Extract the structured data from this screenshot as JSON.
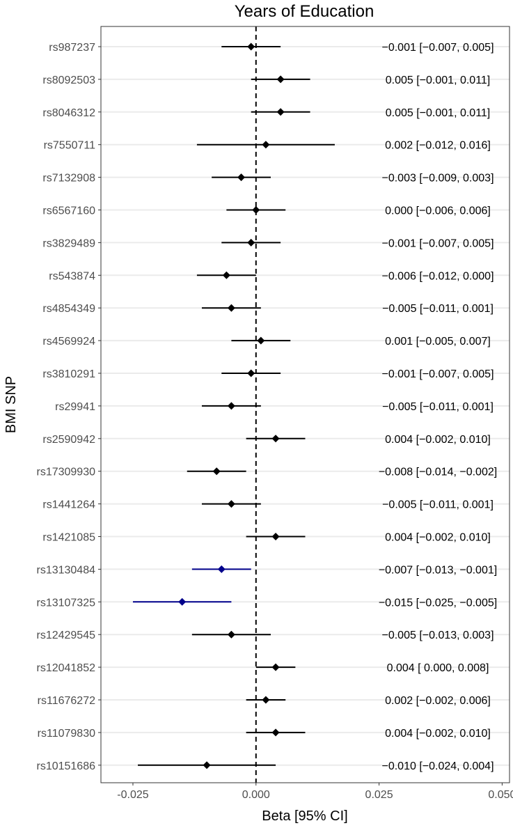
{
  "chart_data": {
    "type": "forest",
    "title": "Years of Education",
    "xlabel": "Beta [95% CI]",
    "ylabel": "BMI SNP",
    "xlim": [
      -0.0315,
      0.0515
    ],
    "xticks": [
      -0.025,
      0.0,
      0.025,
      0.05
    ],
    "xtick_labels": [
      "-0.025",
      "0.000",
      "0.025",
      "0.050"
    ],
    "reference_line": 0,
    "grid": "horizontal",
    "colors": {
      "default": "#000000",
      "highlight": "#00008b",
      "gridline": "#ebebeb",
      "tick_text": "#4d4d4d"
    },
    "rows": [
      {
        "snp": "rs987237",
        "beta": -0.001,
        "lo": -0.007,
        "hi": 0.005,
        "label": "−0.001 [−0.007,  0.005]",
        "highlight": false
      },
      {
        "snp": "rs8092503",
        "beta": 0.005,
        "lo": -0.001,
        "hi": 0.011,
        "label": "0.005 [−0.001,  0.011]",
        "highlight": false
      },
      {
        "snp": "rs8046312",
        "beta": 0.005,
        "lo": -0.001,
        "hi": 0.011,
        "label": "0.005 [−0.001,  0.011]",
        "highlight": false
      },
      {
        "snp": "rs7550711",
        "beta": 0.002,
        "lo": -0.012,
        "hi": 0.016,
        "label": "0.002 [−0.012,  0.016]",
        "highlight": false
      },
      {
        "snp": "rs7132908",
        "beta": -0.003,
        "lo": -0.009,
        "hi": 0.003,
        "label": "−0.003 [−0.009,  0.003]",
        "highlight": false
      },
      {
        "snp": "rs6567160",
        "beta": 0.0,
        "lo": -0.006,
        "hi": 0.006,
        "label": "0.000 [−0.006,  0.006]",
        "highlight": false
      },
      {
        "snp": "rs3829489",
        "beta": -0.001,
        "lo": -0.007,
        "hi": 0.005,
        "label": "−0.001 [−0.007,  0.005]",
        "highlight": false
      },
      {
        "snp": "rs543874",
        "beta": -0.006,
        "lo": -0.012,
        "hi": 0.0,
        "label": "−0.006 [−0.012,  0.000]",
        "highlight": false
      },
      {
        "snp": "rs4854349",
        "beta": -0.005,
        "lo": -0.011,
        "hi": 0.001,
        "label": "−0.005 [−0.011,  0.001]",
        "highlight": false
      },
      {
        "snp": "rs4569924",
        "beta": 0.001,
        "lo": -0.005,
        "hi": 0.007,
        "label": "0.001 [−0.005,  0.007]",
        "highlight": false
      },
      {
        "snp": "rs3810291",
        "beta": -0.001,
        "lo": -0.007,
        "hi": 0.005,
        "label": "−0.001 [−0.007,  0.005]",
        "highlight": false
      },
      {
        "snp": "rs29941",
        "beta": -0.005,
        "lo": -0.011,
        "hi": 0.001,
        "label": "−0.005 [−0.011,  0.001]",
        "highlight": false
      },
      {
        "snp": "rs2590942",
        "beta": 0.004,
        "lo": -0.002,
        "hi": 0.01,
        "label": "0.004 [−0.002,  0.010]",
        "highlight": false
      },
      {
        "snp": "rs17309930",
        "beta": -0.008,
        "lo": -0.014,
        "hi": -0.002,
        "label": "−0.008 [−0.014, −0.002]",
        "highlight": false
      },
      {
        "snp": "rs1441264",
        "beta": -0.005,
        "lo": -0.011,
        "hi": 0.001,
        "label": "−0.005 [−0.011,  0.001]",
        "highlight": false
      },
      {
        "snp": "rs1421085",
        "beta": 0.004,
        "lo": -0.002,
        "hi": 0.01,
        "label": "0.004 [−0.002,  0.010]",
        "highlight": false
      },
      {
        "snp": "rs13130484",
        "beta": -0.007,
        "lo": -0.013,
        "hi": -0.001,
        "label": "−0.007 [−0.013, −0.001]",
        "highlight": true
      },
      {
        "snp": "rs13107325",
        "beta": -0.015,
        "lo": -0.025,
        "hi": -0.005,
        "label": "−0.015 [−0.025, −0.005]",
        "highlight": true
      },
      {
        "snp": "rs12429545",
        "beta": -0.005,
        "lo": -0.013,
        "hi": 0.003,
        "label": "−0.005 [−0.013,  0.003]",
        "highlight": false
      },
      {
        "snp": "rs12041852",
        "beta": 0.004,
        "lo": 0.0,
        "hi": 0.008,
        "label": "0.004 [ 0.000,  0.008]",
        "highlight": false
      },
      {
        "snp": "rs11676272",
        "beta": 0.002,
        "lo": -0.002,
        "hi": 0.006,
        "label": "0.002 [−0.002,  0.006]",
        "highlight": false
      },
      {
        "snp": "rs11079830",
        "beta": 0.004,
        "lo": -0.002,
        "hi": 0.01,
        "label": "0.004 [−0.002,  0.010]",
        "highlight": false
      },
      {
        "snp": "rs10151686",
        "beta": -0.01,
        "lo": -0.024,
        "hi": 0.004,
        "label": "−0.010 [−0.024,  0.004]",
        "highlight": false
      }
    ]
  }
}
